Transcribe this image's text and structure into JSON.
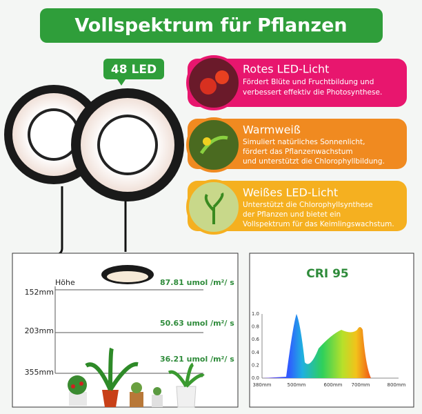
{
  "title": "Vollspektrum für Pflanzen",
  "badge": "48 LED",
  "features": [
    {
      "title": "Rotes LED-Licht",
      "lines": [
        "Fördert Blüte und Fruchtbildung und",
        "verbessert effektiv die Photosynthese."
      ]
    },
    {
      "title": "Warmweiß",
      "lines": [
        "Simuliert natürliches Sonnenlicht,",
        "fördert das Pflanzenwachstum",
        "und unterstützt die Chlorophyllbildung."
      ]
    },
    {
      "title": "Weißes LED-Licht",
      "lines": [
        "Unterstützt die Chlorophyllsynthese",
        "der Pflanzen und bietet ein",
        "Vollspektrum für das Keimlingswachstum."
      ]
    }
  ],
  "height_panel": {
    "label": "Höhe",
    "rows": [
      {
        "height": "152mm",
        "intensity": "87.81 umol /m²/ s"
      },
      {
        "height": "203mm",
        "intensity": "50.63 umol /m²/ s"
      },
      {
        "height": "355mm",
        "intensity": "36.21 umol /m²/ s"
      }
    ]
  },
  "spectrum": {
    "title": "CRI 95",
    "yticks": [
      "0.0",
      "0.2",
      "0.4",
      "0.6",
      "0.8",
      "1.0"
    ],
    "xticks": [
      "380mm",
      "500mm",
      "600mm",
      "700mm",
      "800mm"
    ]
  }
}
